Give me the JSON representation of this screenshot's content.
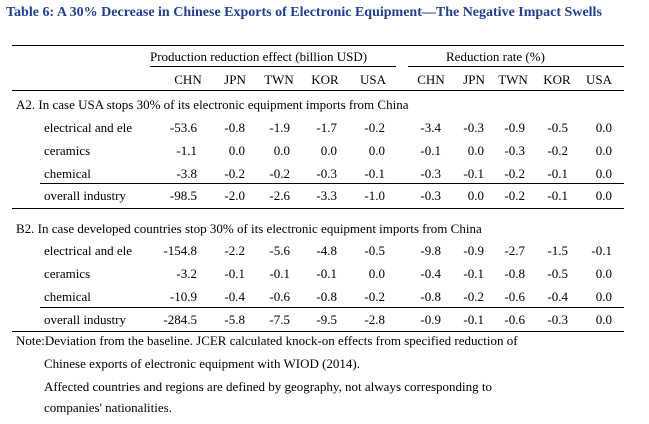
{
  "title": "Table 6: A 30% Decrease in Chinese Exports of Electronic Equipment—The Negative Impact Swells",
  "groups": {
    "production": "Production reduction effect (billion USD)",
    "rate": "Reduction rate (%)"
  },
  "columns": [
    "CHN",
    "JPN",
    "TWN",
    "KOR",
    "USA",
    "CHN",
    "JPN",
    "TWN",
    "KOR",
    "USA"
  ],
  "sections": [
    {
      "title": "A2. In case USA stops 30% of its electronic equipment imports from China",
      "rows": [
        {
          "label": "electrical and ele",
          "values": [
            "-53.6",
            "-0.8",
            "-1.9",
            "-1.7",
            "-0.2",
            "-3.4",
            "-0.3",
            "-0.9",
            "-0.5",
            "0.0"
          ]
        },
        {
          "label": "ceramics",
          "values": [
            "-1.1",
            "0.0",
            "0.0",
            "0.0",
            "0.0",
            "-0.1",
            "0.0",
            "-0.3",
            "-0.2",
            "0.0"
          ]
        },
        {
          "label": "chemical",
          "values": [
            "-3.8",
            "-0.2",
            "-0.2",
            "-0.3",
            "-0.1",
            "-0.3",
            "-0.1",
            "-0.2",
            "-0.1",
            "0.0"
          ]
        },
        {
          "label": "overall industry",
          "values": [
            "-98.5",
            "-2.0",
            "-2.6",
            "-3.3",
            "-1.0",
            "-0.3",
            "0.0",
            "-0.2",
            "-0.1",
            "0.0"
          ]
        }
      ]
    },
    {
      "title": "B2. In case developed countries stop 30% of its electronic equipment imports from China",
      "rows": [
        {
          "label": "electrical and ele",
          "values": [
            "-154.8",
            "-2.2",
            "-5.6",
            "-4.8",
            "-0.5",
            "-9.8",
            "-0.9",
            "-2.7",
            "-1.5",
            "-0.1"
          ]
        },
        {
          "label": "ceramics",
          "values": [
            "-3.2",
            "-0.1",
            "-0.1",
            "-0.1",
            "0.0",
            "-0.4",
            "-0.1",
            "-0.8",
            "-0.5",
            "0.0"
          ]
        },
        {
          "label": "chemical",
          "values": [
            "-10.9",
            "-0.4",
            "-0.6",
            "-0.8",
            "-0.2",
            "-0.8",
            "-0.2",
            "-0.6",
            "-0.4",
            "0.0"
          ]
        },
        {
          "label": "overall industry",
          "values": [
            "-284.5",
            "-5.8",
            "-7.5",
            "-9.5",
            "-2.8",
            "-0.9",
            "-0.1",
            "-0.6",
            "-0.3",
            "0.0"
          ]
        }
      ]
    }
  ],
  "notes": {
    "line1": "Note:Deviation from the baseline.  JCER calculated  knock-on effects from specified reduction of",
    "line2": "Chinese exports of electronic equipment with WIOD (2014).",
    "line3": "Affected countries and regions are defined by geography, not always corresponding to",
    "line4": "companies' nationalities."
  },
  "colors": {
    "title": "#1f3f8f",
    "text": "#000000",
    "rule": "#000000"
  }
}
